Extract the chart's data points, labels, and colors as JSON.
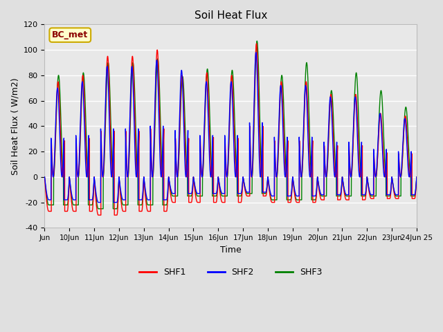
{
  "title": "Soil Heat Flux",
  "xlabel": "Time",
  "ylabel": "Soil Heat Flux ( W/m2)",
  "ylim": [
    -40,
    120
  ],
  "xlim": [
    0,
    360
  ],
  "background_color": "#e0e0e0",
  "plot_bg_color": "#e8e8e8",
  "grid_color": "white",
  "annotation_text": "BC_met",
  "annotation_box_color": "#ffffcc",
  "annotation_box_edge": "#ccaa00",
  "annotation_text_color": "#8b0000",
  "series_colors": [
    "red",
    "blue",
    "green"
  ],
  "series_labels": [
    "SHF1",
    "SHF2",
    "SHF3"
  ],
  "xtick_labels": [
    "Jun",
    "10Jun",
    "11Jun",
    "12Jun",
    "13Jun",
    "14Jun",
    "15Jun",
    "16Jun",
    "17Jun",
    "18Jun",
    "19Jun",
    "20Jun",
    "21Jun",
    "22Jun",
    "23Jun",
    "24Jun 25"
  ],
  "xtick_positions": [
    0,
    24,
    48,
    72,
    96,
    120,
    144,
    168,
    192,
    216,
    240,
    264,
    288,
    312,
    336,
    360
  ],
  "ytick_labels": [
    "-40",
    "-20",
    "0",
    "20",
    "40",
    "60",
    "80",
    "100",
    "120"
  ],
  "ytick_values": [
    -40,
    -20,
    0,
    20,
    40,
    60,
    80,
    100,
    120
  ],
  "line_width": 1.0,
  "figsize": [
    6.4,
    4.8
  ],
  "dpi": 100
}
